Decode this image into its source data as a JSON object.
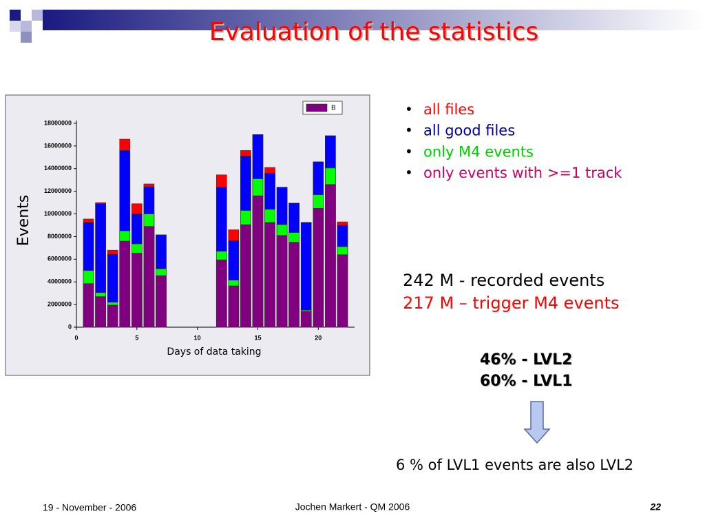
{
  "title": "Evaluation of the statistics",
  "chart_data": {
    "type": "bar",
    "overlap": true,
    "x": [
      1,
      2,
      3,
      4,
      5,
      6,
      7,
      12,
      13,
      14,
      15,
      16,
      17,
      18,
      19,
      20,
      21,
      22
    ],
    "series": [
      {
        "name": "all files",
        "color": "#ff0000",
        "label_color": "#ff0000",
        "values": [
          9550000,
          11000000,
          6800000,
          16600000,
          10900000,
          12650000,
          8150000,
          13450000,
          8600000,
          15600000,
          17000000,
          14100000,
          12350000,
          10950000,
          9250000,
          14600000,
          16900000,
          9300000
        ]
      },
      {
        "name": "all good files",
        "color": "#0000ff",
        "label_color": "#000099",
        "values": [
          9250000,
          10900000,
          6450000,
          15600000,
          10000000,
          12400000,
          8150000,
          12350000,
          7650000,
          15100000,
          17000000,
          13600000,
          12350000,
          10950000,
          9250000,
          14600000,
          16900000,
          9000000
        ]
      },
      {
        "name": "only M4 events",
        "color": "#00ff00",
        "label_color": "#00cc00",
        "values": [
          5000000,
          3050000,
          2200000,
          8500000,
          7350000,
          10000000,
          5150000,
          6700000,
          4150000,
          10300000,
          13100000,
          10400000,
          9050000,
          8350000,
          1500000,
          11700000,
          14050000,
          7100000
        ]
      },
      {
        "name": "only events with >=1 track",
        "color": "#800080",
        "label_color": "#cc0066",
        "values": [
          3850000,
          2700000,
          1950000,
          7600000,
          6550000,
          8900000,
          4550000,
          5950000,
          3650000,
          9050000,
          11600000,
          9250000,
          8100000,
          7500000,
          1400000,
          10500000,
          12600000,
          6400000
        ]
      }
    ],
    "legend": {
      "label": "B",
      "color": "#800080"
    },
    "xlabel": "Days of data taking",
    "ylabel": "Events",
    "xlim": [
      0,
      23
    ],
    "xticks": [
      0,
      5,
      10,
      15,
      20
    ],
    "ylim": [
      0,
      18000000
    ],
    "yticks": [
      0,
      2000000,
      4000000,
      6000000,
      8000000,
      10000000,
      12000000,
      14000000,
      16000000,
      18000000
    ]
  },
  "notes": [
    "242 M - recorded events",
    "217 M – trigger M4 events"
  ],
  "levels": [
    "46% - LVL2",
    "60% - LVL1"
  ],
  "conclusion": "6 % of LVL1 events are also LVL2",
  "footer": {
    "date": "19 - November - 2006",
    "author": "Jochen Markert - QM 2006",
    "page": "22"
  }
}
